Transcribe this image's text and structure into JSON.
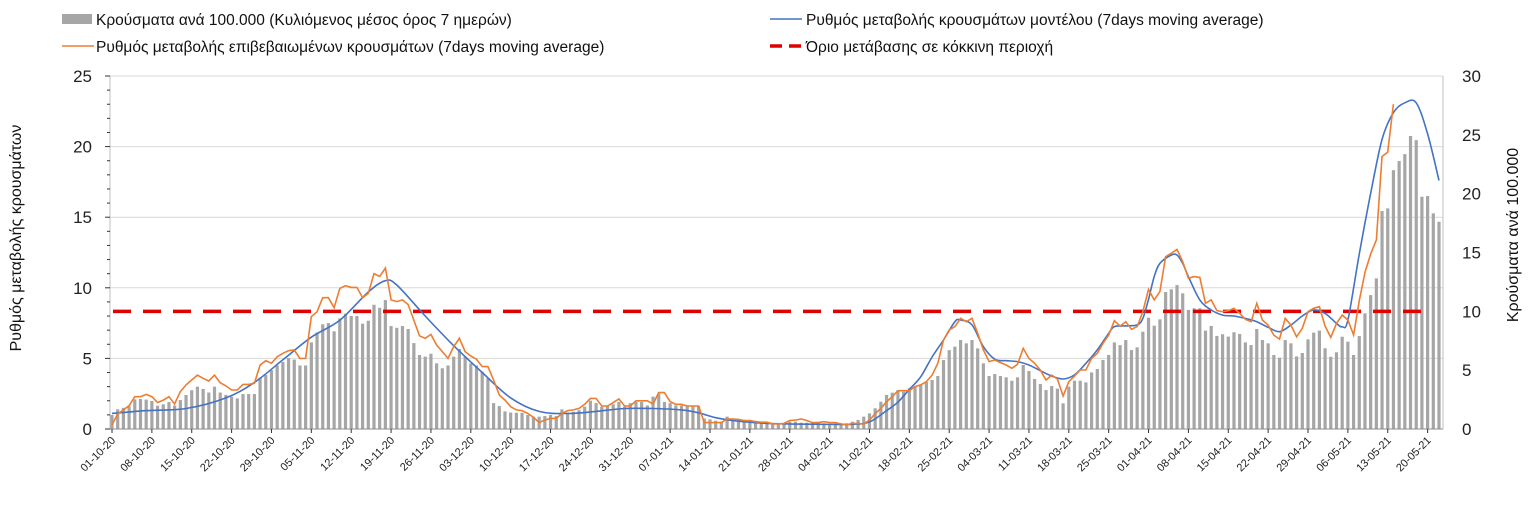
{
  "chart_data": {
    "type": "bar+line",
    "x_start": "01-10-20",
    "x_tick_labels": [
      "01-10-20",
      "08-10-20",
      "15-10-20",
      "22-10-20",
      "29-10-20",
      "05-11-20",
      "12-11-20",
      "19-11-20",
      "26-11-20",
      "03-12-20",
      "10-12-20",
      "17-12-20",
      "24-12-20",
      "31-12-20",
      "07-01-21",
      "14-01-21",
      "21-01-21",
      "28-01-21",
      "04-02-21",
      "11-02-21",
      "18-02-21",
      "25-02-21",
      "04-03-21",
      "11-03-21",
      "18-03-21",
      "25-03-21",
      "01-04-21",
      "08-04-21",
      "15-04-21",
      "22-04-21",
      "29-04-21",
      "06-05-21",
      "13-05-21",
      "20-05-21"
    ],
    "x_tick_step_days": 7,
    "ylabel_left": "Ρυθμός μεταβολής κρουσμάτων",
    "ylabel_right": "Κρούσματα ανά 100.000",
    "ylim_left": [
      0,
      25
    ],
    "ylim_right": [
      0,
      30
    ],
    "yticks_left": [
      "0",
      "5",
      "10",
      "15",
      "20",
      "25"
    ],
    "yticks_right": [
      "0",
      "5",
      "10",
      "15",
      "20",
      "25",
      "30"
    ],
    "grid": true,
    "legend_position": "top",
    "series": [
      {
        "name": "Κρούσματα ανά 100.000 (Κυλιόμενος μέσος όρος 7 ημερών)",
        "kind": "bar",
        "axis": "right",
        "color": "#a6a6a6",
        "values": [
          1.19,
          1.67,
          1.8,
          1.95,
          2.52,
          2.55,
          2.5,
          2.38,
          1.98,
          2.1,
          2.3,
          2.0,
          2.46,
          2.89,
          3.3,
          3.6,
          3.4,
          3.1,
          3.6,
          3.1,
          2.9,
          2.75,
          2.6,
          2.97,
          2.97,
          2.97,
          4.36,
          4.6,
          5.0,
          5.4,
          5.7,
          6.03,
          5.9,
          5.4,
          5.4,
          7.36,
          8.2,
          8.9,
          9.0,
          8.3,
          9.4,
          9.8,
          9.6,
          9.6,
          8.95,
          9.2,
          10.56,
          10.3,
          10.96,
          8.75,
          8.6,
          8.75,
          8.5,
          7.3,
          6.29,
          6.15,
          6.4,
          5.58,
          5.16,
          5.4,
          6.15,
          6.8,
          6.15,
          5.58,
          5.4,
          4.87,
          4.3,
          2.2,
          1.95,
          1.5,
          1.4,
          1.38,
          1.38,
          1.19,
          1.05,
          1.05,
          1.1,
          1.2,
          1.1,
          1.67,
          1.4,
          1.47,
          1.6,
          1.9,
          2.41,
          2.2,
          1.9,
          2.0,
          2.1,
          2.3,
          1.9,
          2.2,
          2.3,
          2.3,
          2.0,
          2.75,
          3.0,
          2.3,
          2.2,
          2.0,
          2.0,
          2.0,
          2.0,
          1.95,
          0.9,
          0.82,
          0.7,
          0.62,
          1.05,
          0.9,
          0.77,
          0.7,
          0.7,
          0.7,
          0.62,
          0.54,
          0.48,
          0.48,
          0.48,
          0.62,
          0.62,
          0.54,
          0.54,
          0.54,
          0.62,
          0.48,
          0.42,
          0.34,
          0.42,
          0.48,
          0.62,
          0.77,
          1.05,
          1.33,
          1.76,
          2.32,
          2.89,
          3.09,
          3.3,
          3.17,
          3.46,
          3.6,
          3.74,
          4.0,
          4.16,
          4.5,
          5.86,
          6.7,
          7.0,
          7.56,
          7.28,
          7.56,
          6.85,
          5.58,
          4.5,
          4.67,
          4.5,
          4.39,
          4.1,
          4.39,
          5.44,
          4.93,
          4.25,
          3.82,
          3.31,
          3.65,
          3.43,
          2.18,
          3.6,
          4.1,
          4.1,
          3.96,
          4.81,
          5.1,
          5.86,
          6.29,
          7.36,
          7.13,
          7.56,
          6.71,
          6.94,
          8.27,
          9.46,
          8.78,
          9.32,
          11.64,
          11.87,
          12.23,
          11.53,
          10.12,
          10.26,
          10.26,
          8.36,
          8.76,
          7.91,
          8.05,
          7.85,
          8.22,
          8.08,
          7.36,
          7.13,
          8.5,
          7.56,
          7.28,
          6.29,
          6.06,
          7.56,
          7.28,
          6.17,
          6.46,
          7.62,
          8.19,
          8.36,
          6.86,
          6.14,
          6.52,
          7.84,
          7.42,
          6.29,
          7.9,
          9.83,
          11.38,
          12.8,
          18.52,
          18.75,
          22.0,
          22.77,
          23.36,
          24.9,
          24.55,
          19.74,
          19.8,
          18.33,
          17.61
        ]
      },
      {
        "name": "Ρυθμός μεταβολής επιβεβαιωμένων κρουσμάτων (7days moving average)",
        "kind": "line",
        "axis": "left",
        "color": "#ed7d31",
        "values": [
          0.3,
          1.06,
          1.35,
          1.65,
          2.29,
          2.29,
          2.45,
          2.29,
          1.87,
          2.05,
          2.29,
          1.77,
          2.64,
          3.12,
          3.47,
          3.82,
          3.59,
          3.4,
          3.82,
          3.28,
          3.05,
          2.76,
          2.76,
          3.16,
          3.16,
          3.24,
          4.53,
          4.84,
          4.65,
          5.12,
          5.36,
          5.55,
          5.6,
          5.0,
          5.0,
          7.95,
          8.3,
          9.3,
          9.3,
          8.59,
          9.96,
          10.15,
          10.03,
          10.03,
          9.3,
          9.6,
          11.0,
          10.8,
          11.4,
          9.14,
          9.02,
          9.14,
          8.8,
          7.72,
          6.6,
          6.42,
          6.7,
          5.95,
          5.48,
          5.0,
          5.83,
          6.42,
          5.48,
          5.17,
          4.94,
          4.42,
          4.42,
          3.47,
          2.41,
          2.05,
          1.58,
          1.35,
          1.3,
          1.1,
          0.82,
          0.46,
          0.63,
          0.75,
          0.75,
          1.1,
          1.3,
          1.35,
          1.46,
          1.75,
          2.17,
          2.17,
          1.63,
          1.63,
          1.87,
          2.13,
          1.63,
          1.63,
          2.0,
          2.0,
          2.0,
          1.77,
          2.58,
          2.58,
          1.94,
          1.75,
          1.75,
          1.63,
          1.63,
          1.63,
          0.45,
          0.45,
          0.45,
          0.45,
          0.71,
          0.71,
          0.68,
          0.6,
          0.6,
          0.52,
          0.48,
          0.48,
          0.36,
          0.36,
          0.4,
          0.6,
          0.63,
          0.71,
          0.6,
          0.45,
          0.45,
          0.52,
          0.45,
          0.45,
          0.36,
          0.3,
          0.4,
          0.4,
          0.36,
          0.63,
          1.1,
          1.46,
          1.94,
          2.29,
          2.71,
          2.71,
          2.71,
          3.0,
          3.12,
          3.36,
          3.82,
          4.65,
          6.3,
          7.01,
          7.25,
          7.84,
          7.6,
          7.84,
          6.78,
          5.6,
          4.77,
          4.89,
          4.7,
          4.53,
          4.3,
          4.58,
          5.71,
          5.0,
          4.65,
          4.18,
          3.47,
          3.82,
          3.54,
          2.34,
          3.35,
          3.75,
          4.18,
          4.18,
          5.0,
          5.36,
          6.07,
          6.66,
          7.67,
          7.29,
          7.6,
          7.06,
          7.25,
          8.3,
          9.89,
          9.14,
          9.73,
          12.2,
          12.44,
          12.72,
          11.85,
          10.67,
          10.79,
          10.74,
          8.9,
          9.14,
          8.38,
          8.31,
          8.38,
          8.55,
          8.19,
          7.77,
          7.6,
          8.9,
          7.72,
          7.36,
          6.65,
          6.37,
          7.84,
          7.36,
          6.53,
          7.13,
          8.31,
          8.55,
          8.67,
          7.29,
          6.49,
          7.48,
          8.07,
          7.72,
          6.66,
          9.1,
          11.1,
          12.4,
          13.4,
          19.3,
          19.6,
          23.0
        ]
      },
      {
        "name": "Ρυθμός μεταβολής κρουσμάτων μοντέλου (7days moving average)",
        "kind": "smooth-line",
        "axis": "left",
        "color": "#4472c4",
        "points_day_value": [
          [
            0,
            1.1
          ],
          [
            6,
            1.3
          ],
          [
            13,
            1.45
          ],
          [
            20,
            2.2
          ],
          [
            25,
            3.3
          ],
          [
            30,
            4.9
          ],
          [
            35,
            6.5
          ],
          [
            40,
            7.7
          ],
          [
            45,
            9.7
          ],
          [
            48,
            10.5
          ],
          [
            50,
            10.2
          ],
          [
            55,
            8.0
          ],
          [
            60,
            5.9
          ],
          [
            65,
            4.0
          ],
          [
            70,
            2.2
          ],
          [
            75,
            1.25
          ],
          [
            80,
            1.1
          ],
          [
            85,
            1.25
          ],
          [
            90,
            1.45
          ],
          [
            95,
            1.45
          ],
          [
            100,
            1.35
          ],
          [
            103,
            1.15
          ],
          [
            106,
            0.8
          ],
          [
            110,
            0.55
          ],
          [
            115,
            0.4
          ],
          [
            120,
            0.35
          ],
          [
            125,
            0.33
          ],
          [
            130,
            0.33
          ],
          [
            133,
            0.5
          ],
          [
            136,
            1.3
          ],
          [
            138,
            1.9
          ],
          [
            140,
            2.8
          ],
          [
            142,
            3.7
          ],
          [
            144,
            5.1
          ],
          [
            146,
            6.3
          ],
          [
            148,
            7.6
          ],
          [
            149,
            7.72
          ],
          [
            151,
            7.37
          ],
          [
            153,
            5.83
          ],
          [
            155,
            4.94
          ],
          [
            157,
            4.84
          ],
          [
            159,
            4.77
          ],
          [
            161,
            4.53
          ],
          [
            163,
            4.13
          ],
          [
            165,
            3.75
          ],
          [
            167,
            3.54
          ],
          [
            169,
            3.83
          ],
          [
            171,
            4.65
          ],
          [
            173,
            5.6
          ],
          [
            175,
            6.78
          ],
          [
            176,
            7.25
          ],
          [
            178,
            7.3
          ],
          [
            180,
            7.37
          ],
          [
            181,
            7.83
          ],
          [
            182,
            9.18
          ],
          [
            183,
            10.79
          ],
          [
            184,
            11.73
          ],
          [
            186,
            12.32
          ],
          [
            187,
            12.32
          ],
          [
            188,
            11.73
          ],
          [
            189,
            10.79
          ],
          [
            191,
            9.14
          ],
          [
            193,
            8.43
          ],
          [
            195,
            8.07
          ],
          [
            197,
            8.0
          ],
          [
            199,
            7.83
          ],
          [
            201,
            7.6
          ],
          [
            203,
            7.2
          ],
          [
            205,
            6.89
          ],
          [
            207,
            7.36
          ],
          [
            209,
            8.0
          ],
          [
            211,
            8.43
          ],
          [
            213,
            8.19
          ],
          [
            215,
            7.48
          ],
          [
            216,
            7.24
          ],
          [
            217,
            7.72
          ],
          [
            219,
            12.4
          ],
          [
            221,
            16.7
          ],
          [
            223,
            20.5
          ],
          [
            225,
            22.4
          ],
          [
            227,
            23.1
          ],
          [
            229,
            23.1
          ],
          [
            231,
            20.9
          ],
          [
            233,
            17.6
          ]
        ]
      },
      {
        "name": "Όριο μετάβασης σε κόκκινη περιοχή",
        "kind": "dashed-threshold",
        "axis": "right",
        "color": "#e00000",
        "value": 10
      }
    ]
  }
}
